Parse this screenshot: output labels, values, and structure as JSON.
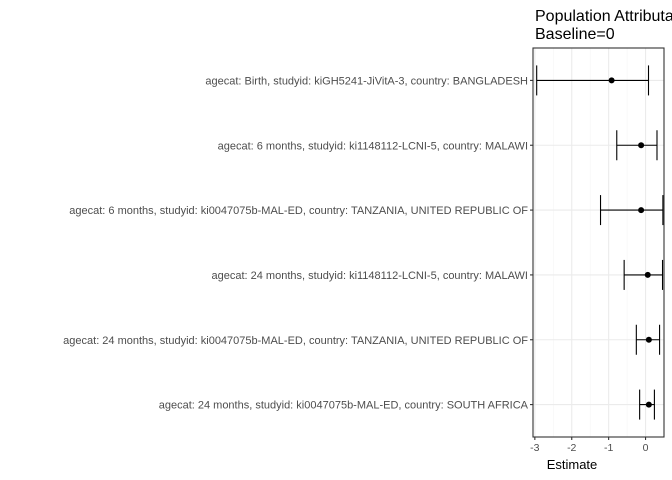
{
  "chart_data": {
    "type": "forest",
    "title": "Population Attributable Difference",
    "subtitle": "Baseline=0",
    "xlabel": "Estimate",
    "ylabel": "",
    "xlim": [
      -3.05,
      0.5
    ],
    "xticks": [
      -3,
      -2,
      -1,
      0
    ],
    "grid": true,
    "legend": "none",
    "categories": [
      "agecat: Birth, studyid: kiGH5241-JiVitA-3, country: BANGLADESH",
      "agecat: 6 months, studyid: ki1148112-LCNI-5, country: MALAWI",
      "agecat: 6 months, studyid: ki0047075b-MAL-ED, country: TANZANIA, UNITED REPUBLIC OF",
      "agecat: 24 months, studyid: ki1148112-LCNI-5, country: MALAWI",
      "agecat: 24 months, studyid: ki0047075b-MAL-ED, country: TANZANIA, UNITED REPUBLIC OF",
      "agecat: 24 months, studyid: ki0047075b-MAL-ED, country: SOUTH AFRICA"
    ],
    "estimates": [
      -0.92,
      -0.12,
      -0.12,
      0.06,
      0.09,
      0.09
    ],
    "lower": [
      -2.95,
      -0.78,
      -1.22,
      -0.58,
      -0.25,
      -0.16
    ],
    "upper": [
      0.08,
      0.31,
      0.47,
      0.46,
      0.38,
      0.24
    ],
    "colors": {
      "panel_bg": "#ffffff",
      "grid_major": "#ebebeb",
      "grid_minor": "#f5f5f5",
      "border": "#333333",
      "mark": "#000000"
    }
  }
}
